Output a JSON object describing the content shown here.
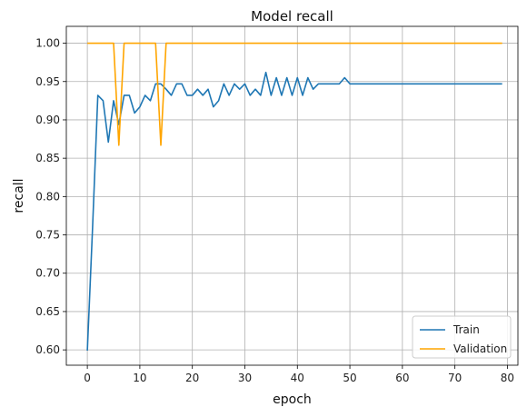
{
  "chart_data": {
    "type": "line",
    "title": "Model recall",
    "xlabel": "epoch",
    "ylabel": "recall",
    "xlim": [
      -4,
      82
    ],
    "ylim": [
      0.58,
      1.022
    ],
    "xticks": [
      0,
      10,
      20,
      30,
      40,
      50,
      60,
      70,
      80
    ],
    "xtick_labels": [
      "0",
      "10",
      "20",
      "30",
      "40",
      "50",
      "60",
      "70",
      "80"
    ],
    "yticks": [
      0.6,
      0.65,
      0.7,
      0.75,
      0.8,
      0.85,
      0.9,
      0.95,
      1.0
    ],
    "ytick_labels": [
      "0.60",
      "0.65",
      "0.70",
      "0.75",
      "0.80",
      "0.85",
      "0.90",
      "0.95",
      "1.00"
    ],
    "grid": true,
    "legend_position": "lower-right",
    "series": [
      {
        "name": "Train",
        "color": "#1f77b4",
        "values": [
          0.599,
          0.76,
          0.932,
          0.925,
          0.871,
          0.925,
          0.894,
          0.932,
          0.932,
          0.909,
          0.917,
          0.932,
          0.925,
          0.947,
          0.947,
          0.94,
          0.932,
          0.947,
          0.947,
          0.932,
          0.932,
          0.94,
          0.932,
          0.94,
          0.917,
          0.925,
          0.947,
          0.932,
          0.947,
          0.94,
          0.947,
          0.932,
          0.94,
          0.932,
          0.962,
          0.932,
          0.955,
          0.932,
          0.955,
          0.932,
          0.955,
          0.932,
          0.955,
          0.94,
          0.947,
          0.947,
          0.947,
          0.947,
          0.947,
          0.955,
          0.947,
          0.947,
          0.947,
          0.947,
          0.947,
          0.947,
          0.947,
          0.947,
          0.947,
          0.947,
          0.947,
          0.947,
          0.947,
          0.947,
          0.947,
          0.947,
          0.947,
          0.947,
          0.947,
          0.947,
          0.947,
          0.947,
          0.947,
          0.947,
          0.947,
          0.947,
          0.947,
          0.947,
          0.947,
          0.947
        ]
      },
      {
        "name": "Validation",
        "color": "#ffa500",
        "values": [
          1.0,
          1.0,
          1.0,
          1.0,
          1.0,
          1.0,
          0.867,
          1.0,
          1.0,
          1.0,
          1.0,
          1.0,
          1.0,
          1.0,
          0.867,
          1.0,
          1.0,
          1.0,
          1.0,
          1.0,
          1.0,
          1.0,
          1.0,
          1.0,
          1.0,
          1.0,
          1.0,
          1.0,
          1.0,
          1.0,
          1.0,
          1.0,
          1.0,
          1.0,
          1.0,
          1.0,
          1.0,
          1.0,
          1.0,
          1.0,
          1.0,
          1.0,
          1.0,
          1.0,
          1.0,
          1.0,
          1.0,
          1.0,
          1.0,
          1.0,
          1.0,
          1.0,
          1.0,
          1.0,
          1.0,
          1.0,
          1.0,
          1.0,
          1.0,
          1.0,
          1.0,
          1.0,
          1.0,
          1.0,
          1.0,
          1.0,
          1.0,
          1.0,
          1.0,
          1.0,
          1.0,
          1.0,
          1.0,
          1.0,
          1.0,
          1.0,
          1.0,
          1.0,
          1.0,
          1.0
        ]
      }
    ]
  }
}
